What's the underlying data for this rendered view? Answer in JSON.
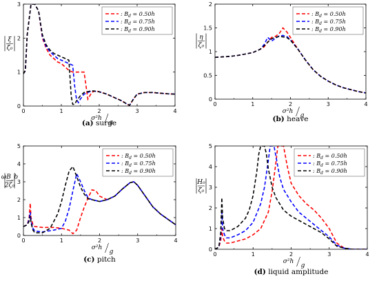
{
  "chart_data": [
    {
      "type": "line",
      "caption_tag": "(a)",
      "caption_text": "surge",
      "ylabel_num": "ξ",
      "ylabel_den": "ζ₀",
      "xlabel_num": "σ²h",
      "xlabel_den": "g",
      "xlim": [
        0,
        4
      ],
      "ylim": [
        0,
        3
      ],
      "xticks": [
        "0",
        "1",
        "2",
        "3",
        "4"
      ],
      "yticks": [
        "0",
        "1",
        "2",
        "3"
      ],
      "legend_placement": "top-right",
      "series": [
        {
          "name": ": B_d = 0.50h",
          "color": "#ff0000",
          "x": [
            0.0,
            0.05,
            0.1,
            0.2,
            0.3,
            0.4,
            0.5,
            0.6,
            0.7,
            0.8,
            0.9,
            1.0,
            1.1,
            1.2,
            1.3,
            1.4,
            1.5,
            1.6,
            1.65,
            1.7,
            1.75,
            1.8,
            1.9,
            2.0,
            2.2,
            2.4,
            2.6,
            2.7,
            2.8,
            2.9,
            3.0,
            3.2,
            3.4,
            3.6,
            3.8,
            4.0
          ],
          "y": [
            0.95,
            1.05,
            2.1,
            3.0,
            3.0,
            2.8,
            2.0,
            1.7,
            1.5,
            1.4,
            1.3,
            1.25,
            1.15,
            1.05,
            1.0,
            1.0,
            1.0,
            1.0,
            0.6,
            0.2,
            0.3,
            0.4,
            0.45,
            0.42,
            0.35,
            0.25,
            0.15,
            0.08,
            0.02,
            0.2,
            0.35,
            0.4,
            0.4,
            0.38,
            0.36,
            0.35
          ]
        },
        {
          "name": ": B_d = 0.75h",
          "color": "#0000ff",
          "x": [
            0.0,
            0.05,
            0.1,
            0.2,
            0.3,
            0.4,
            0.5,
            0.6,
            0.7,
            0.8,
            0.9,
            1.0,
            1.1,
            1.2,
            1.3,
            1.35,
            1.4,
            1.45,
            1.5,
            1.6,
            1.8,
            2.0,
            2.2,
            2.4,
            2.6,
            2.7,
            2.8,
            2.9,
            3.0,
            3.2,
            3.4,
            3.6,
            3.8,
            4.0
          ],
          "y": [
            0.95,
            1.05,
            2.1,
            3.0,
            3.0,
            2.8,
            2.05,
            1.75,
            1.6,
            1.5,
            1.4,
            1.35,
            1.3,
            1.25,
            1.2,
            0.6,
            0.2,
            0.1,
            0.2,
            0.35,
            0.45,
            0.42,
            0.35,
            0.25,
            0.15,
            0.08,
            0.02,
            0.2,
            0.35,
            0.4,
            0.4,
            0.38,
            0.36,
            0.35
          ]
        },
        {
          "name": ": B_d = 0.90h",
          "color": "#000000",
          "x": [
            0.0,
            0.05,
            0.1,
            0.2,
            0.3,
            0.4,
            0.5,
            0.6,
            0.7,
            0.8,
            0.9,
            1.0,
            1.1,
            1.2,
            1.22,
            1.26,
            1.3,
            1.35,
            1.4,
            1.5,
            1.6,
            1.8,
            2.0,
            2.2,
            2.4,
            2.6,
            2.7,
            2.8,
            2.9,
            3.0,
            3.2,
            3.4,
            3.6,
            3.8,
            4.0
          ],
          "y": [
            0.95,
            1.05,
            2.1,
            3.0,
            3.0,
            2.8,
            2.1,
            1.8,
            1.65,
            1.55,
            1.5,
            1.45,
            1.4,
            1.35,
            1.0,
            0.3,
            0.05,
            0.05,
            0.15,
            0.3,
            0.4,
            0.45,
            0.42,
            0.35,
            0.25,
            0.15,
            0.08,
            0.02,
            0.2,
            0.35,
            0.4,
            0.4,
            0.38,
            0.36,
            0.35
          ]
        }
      ]
    },
    {
      "type": "line",
      "caption_tag": "(b)",
      "caption_text": "heave",
      "ylabel_num": "η",
      "ylabel_den": "ζ₀",
      "xlabel_num": "σ²h",
      "xlabel_den": "g",
      "xlim": [
        0,
        4
      ],
      "ylim": [
        0,
        2
      ],
      "xticks": [
        "0",
        "1",
        "2",
        "3",
        "4"
      ],
      "yticks": [
        "0",
        "0.5",
        "1",
        "1.5",
        "2"
      ],
      "legend_placement": "top-right",
      "series": [
        {
          "name": ": B_d = 0.50h",
          "color": "#ff0000",
          "x": [
            0.0,
            0.2,
            0.4,
            0.6,
            0.8,
            1.0,
            1.2,
            1.3,
            1.4,
            1.5,
            1.6,
            1.7,
            1.8,
            1.9,
            2.0,
            2.2,
            2.4,
            2.6,
            2.8,
            3.0,
            3.2,
            3.4,
            3.6,
            3.8,
            4.0
          ],
          "y": [
            0.88,
            0.89,
            0.9,
            0.92,
            0.95,
            0.98,
            1.05,
            1.1,
            1.2,
            1.3,
            1.32,
            1.38,
            1.5,
            1.42,
            1.3,
            1.05,
            0.82,
            0.62,
            0.48,
            0.38,
            0.3,
            0.24,
            0.2,
            0.16,
            0.13
          ]
        },
        {
          "name": ": B_d = 0.75h",
          "color": "#0000ff",
          "x": [
            0.0,
            0.2,
            0.4,
            0.6,
            0.8,
            1.0,
            1.2,
            1.3,
            1.4,
            1.5,
            1.6,
            1.7,
            1.8,
            1.9,
            2.0,
            2.2,
            2.4,
            2.6,
            2.8,
            3.0,
            3.2,
            3.4,
            3.6,
            3.8,
            4.0
          ],
          "y": [
            0.88,
            0.89,
            0.9,
            0.92,
            0.95,
            0.98,
            1.05,
            1.15,
            1.3,
            1.22,
            1.28,
            1.33,
            1.34,
            1.32,
            1.25,
            1.05,
            0.82,
            0.62,
            0.48,
            0.38,
            0.3,
            0.24,
            0.2,
            0.16,
            0.13
          ]
        },
        {
          "name": ": B_d = 0.90h",
          "color": "#000000",
          "x": [
            0.0,
            0.2,
            0.4,
            0.6,
            0.8,
            1.0,
            1.2,
            1.3,
            1.4,
            1.5,
            1.6,
            1.7,
            1.8,
            1.9,
            2.0,
            2.2,
            2.4,
            2.6,
            2.8,
            3.0,
            3.2,
            3.4,
            3.6,
            3.8,
            4.0
          ],
          "y": [
            0.88,
            0.89,
            0.9,
            0.92,
            0.95,
            0.98,
            1.05,
            1.12,
            1.2,
            1.27,
            1.3,
            1.32,
            1.31,
            1.3,
            1.24,
            1.05,
            0.82,
            0.62,
            0.48,
            0.38,
            0.3,
            0.24,
            0.2,
            0.16,
            0.13
          ]
        }
      ]
    },
    {
      "type": "line",
      "caption_tag": "(c)",
      "caption_text": "pitch",
      "ylabel_num": "ωB_b",
      "ylabel_den": "2ζ₀",
      "xlabel_num": "σ²h",
      "xlabel_den": "g",
      "xlim": [
        0,
        4
      ],
      "ylim": [
        0,
        5
      ],
      "xticks": [
        "0",
        "1",
        "2",
        "3",
        "4"
      ],
      "yticks": [
        "0",
        "1",
        "2",
        "3",
        "4",
        "5"
      ],
      "legend_placement": "top-right",
      "series": [
        {
          "name": ": B_d = 0.50h",
          "color": "#ff0000",
          "x": [
            0.0,
            0.1,
            0.15,
            0.18,
            0.2,
            0.25,
            0.3,
            0.5,
            0.8,
            1.0,
            1.2,
            1.3,
            1.4,
            1.5,
            1.6,
            1.7,
            1.8,
            1.9,
            2.0,
            2.2,
            2.4,
            2.6,
            2.8,
            2.9,
            3.0,
            3.2,
            3.4,
            3.6,
            3.8,
            4.0
          ],
          "y": [
            0.5,
            0.6,
            1.0,
            1.8,
            1.0,
            0.6,
            0.5,
            0.45,
            0.45,
            0.4,
            0.3,
            0.1,
            0.3,
            1.0,
            1.6,
            2.1,
            2.55,
            2.5,
            2.2,
            2.0,
            2.2,
            2.6,
            2.95,
            3.0,
            2.8,
            2.2,
            1.6,
            1.2,
            0.9,
            0.6
          ]
        },
        {
          "name": ": B_d = 0.75h",
          "color": "#0000ff",
          "x": [
            0.0,
            0.1,
            0.15,
            0.18,
            0.2,
            0.25,
            0.3,
            0.5,
            0.8,
            1.0,
            1.1,
            1.2,
            1.3,
            1.4,
            1.5,
            1.6,
            1.7,
            1.8,
            2.0,
            2.2,
            2.4,
            2.6,
            2.8,
            2.9,
            3.0,
            3.2,
            3.4,
            3.6,
            3.8,
            4.0
          ],
          "y": [
            0.5,
            0.6,
            0.9,
            1.3,
            0.8,
            0.4,
            0.25,
            0.2,
            0.3,
            0.4,
            0.8,
            1.5,
            2.5,
            3.45,
            3.0,
            2.5,
            2.1,
            2.0,
            1.9,
            2.0,
            2.2,
            2.6,
            2.95,
            3.0,
            2.8,
            2.2,
            1.6,
            1.2,
            0.9,
            0.6
          ]
        },
        {
          "name": ": B_d = 0.90h",
          "color": "#000000",
          "x": [
            0.0,
            0.1,
            0.15,
            0.18,
            0.2,
            0.25,
            0.3,
            0.5,
            0.7,
            0.9,
            1.0,
            1.1,
            1.2,
            1.3,
            1.4,
            1.5,
            1.6,
            1.7,
            1.8,
            2.0,
            2.2,
            2.4,
            2.6,
            2.8,
            2.9,
            3.0,
            3.2,
            3.4,
            3.6,
            3.8,
            4.0
          ],
          "y": [
            0.5,
            0.6,
            0.8,
            1.1,
            0.7,
            0.3,
            0.15,
            0.15,
            0.4,
            1.2,
            1.9,
            2.8,
            3.6,
            3.85,
            3.3,
            2.7,
            2.3,
            2.05,
            2.0,
            1.9,
            2.0,
            2.2,
            2.6,
            2.95,
            3.0,
            2.8,
            2.2,
            1.6,
            1.2,
            0.9,
            0.6
          ]
        }
      ]
    },
    {
      "type": "line",
      "caption_tag": "(d)",
      "caption_text": "liquid amplitude",
      "ylabel_num": "H₀",
      "ylabel_den": "ζ₀",
      "xlabel_num": "σ²h",
      "xlabel_den": "g",
      "xlim": [
        0,
        4
      ],
      "ylim": [
        0,
        5
      ],
      "xticks": [
        "0",
        "1",
        "2",
        "3",
        "4"
      ],
      "yticks": [
        "0",
        "1",
        "2",
        "3",
        "4",
        "5"
      ],
      "legend_placement": "top-right",
      "series": [
        {
          "name": ": B_d = 0.50h",
          "color": "#ff0000",
          "x": [
            0.0,
            0.1,
            0.15,
            0.18,
            0.2,
            0.25,
            0.3,
            0.4,
            0.6,
            0.8,
            1.0,
            1.2,
            1.4,
            1.5,
            1.6,
            1.65,
            1.7,
            1.75,
            1.8,
            1.9,
            2.0,
            2.2,
            2.4,
            2.6,
            2.8,
            3.0,
            3.2,
            3.4,
            3.6,
            3.8,
            4.0
          ],
          "y": [
            0.0,
            0.1,
            0.4,
            1.0,
            0.6,
            0.4,
            0.3,
            0.3,
            0.4,
            0.5,
            0.7,
            1.0,
            1.8,
            2.8,
            4.2,
            5.0,
            5.0,
            5.0,
            5.0,
            4.0,
            3.2,
            2.6,
            2.2,
            1.9,
            1.5,
            1.0,
            0.3,
            0.05,
            0.0,
            0.0,
            0.0
          ]
        },
        {
          "name": ": B_d = 0.75h",
          "color": "#0000ff",
          "x": [
            0.0,
            0.1,
            0.15,
            0.18,
            0.2,
            0.25,
            0.3,
            0.4,
            0.6,
            0.8,
            1.0,
            1.2,
            1.3,
            1.4,
            1.45,
            1.5,
            1.55,
            1.6,
            1.7,
            1.8,
            2.0,
            2.2,
            2.4,
            2.6,
            2.8,
            3.0,
            3.2,
            3.4,
            3.6,
            3.8,
            4.0
          ],
          "y": [
            0.0,
            0.1,
            0.6,
            1.8,
            1.0,
            0.7,
            0.55,
            0.55,
            0.7,
            0.9,
            1.3,
            2.2,
            3.0,
            4.3,
            5.0,
            5.0,
            5.0,
            4.5,
            3.5,
            2.9,
            2.3,
            1.8,
            1.5,
            1.2,
            0.9,
            0.6,
            0.2,
            0.05,
            0.0,
            0.0,
            0.0
          ]
        },
        {
          "name": ": B_d = 0.90h",
          "color": "#000000",
          "x": [
            0.0,
            0.1,
            0.15,
            0.18,
            0.2,
            0.25,
            0.3,
            0.4,
            0.6,
            0.8,
            0.9,
            1.0,
            1.1,
            1.15,
            1.2,
            1.3,
            1.35,
            1.4,
            1.5,
            1.6,
            1.8,
            2.0,
            2.2,
            2.4,
            2.6,
            2.8,
            3.0,
            3.2,
            3.4,
            3.6,
            3.8,
            4.0
          ],
          "y": [
            0.0,
            0.1,
            0.8,
            2.5,
            1.5,
            1.0,
            0.9,
            0.9,
            1.1,
            1.5,
            1.9,
            2.6,
            3.8,
            4.6,
            5.0,
            5.0,
            4.6,
            3.9,
            3.0,
            2.5,
            1.9,
            1.6,
            1.4,
            1.2,
            1.0,
            0.8,
            0.5,
            0.15,
            0.05,
            0.0,
            0.0,
            0.0
          ]
        }
      ]
    }
  ]
}
